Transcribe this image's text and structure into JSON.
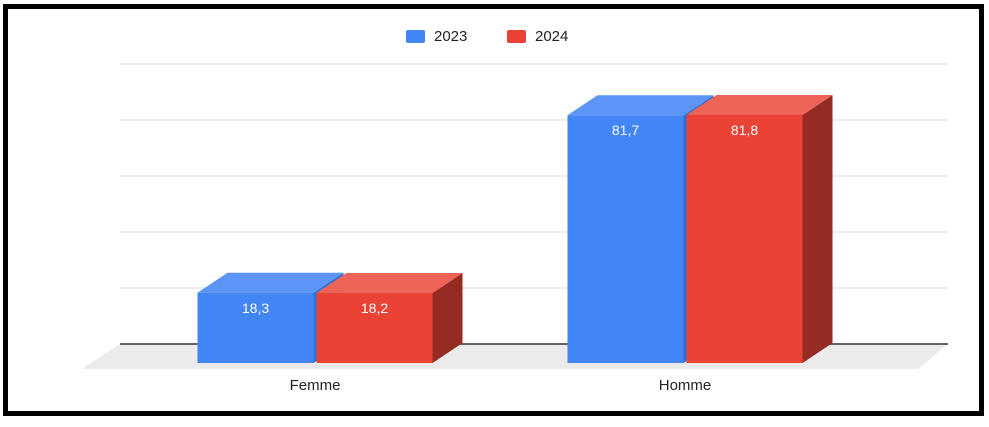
{
  "chart_data": {
    "type": "bar",
    "categories": [
      "Femme",
      "Homme"
    ],
    "series": [
      {
        "name": "2023",
        "values": [
          18.3,
          81.7
        ],
        "labels": [
          "18,3",
          "81,7"
        ],
        "color": "#4285f4",
        "top_color": "#5c95f5",
        "side_color": "#2d6fd8"
      },
      {
        "name": "2024",
        "values": [
          18.2,
          81.8
        ],
        "labels": [
          "18,2",
          "81,8"
        ],
        "color": "#ea4335",
        "top_color": "#ed6358",
        "side_color": "#952b22"
      }
    ],
    "title": "",
    "xlabel": "",
    "ylabel": "",
    "ylim": [
      0,
      100
    ],
    "grid": true,
    "legend": "top-center",
    "three_d": true
  },
  "colors": {
    "border": "#000000",
    "grid": "#d9d9d9",
    "floor": "#ebebeb",
    "label_text": "#ffffff",
    "axis_text": "#222222"
  }
}
